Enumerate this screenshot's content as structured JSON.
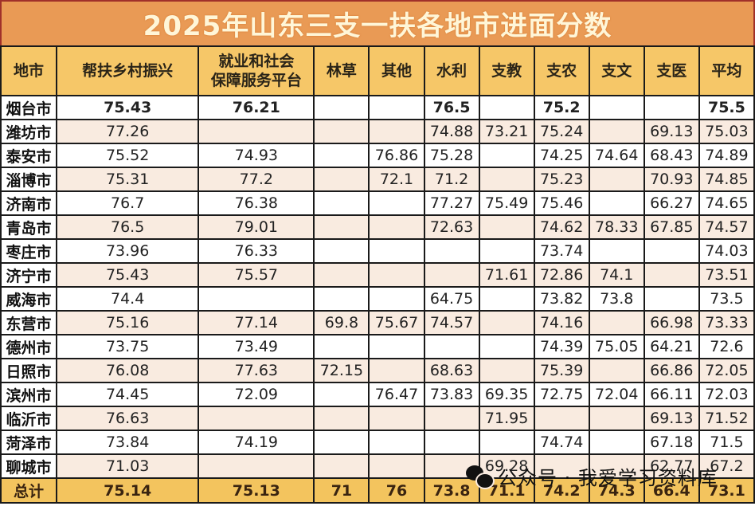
{
  "title": "2025年山东三支一扶各地市进面分数",
  "columns": [
    "地市",
    "帮扶乡村振兴",
    "就业和社会保障服务平台",
    "林草",
    "其他",
    "水利",
    "支教",
    "支农",
    "支文",
    "支医",
    "平均"
  ],
  "column_header_lines": {
    "jiuye_line1": "就业和社会",
    "jiuye_line2": "保障服务平台"
  },
  "rows": [
    {
      "city": "烟台市",
      "values": [
        "75.43",
        "76.21",
        "",
        "",
        "76.5",
        "",
        "75.2",
        "",
        "",
        "75.5"
      ]
    },
    {
      "city": "潍坊市",
      "values": [
        "77.26",
        "",
        "",
        "",
        "74.88",
        "73.21",
        "75.24",
        "",
        "69.13",
        "75.03"
      ]
    },
    {
      "city": "泰安市",
      "values": [
        "75.52",
        "74.93",
        "",
        "76.86",
        "75.28",
        "",
        "74.25",
        "74.64",
        "68.43",
        "74.89"
      ]
    },
    {
      "city": "淄博市",
      "values": [
        "75.31",
        "77.2",
        "",
        "72.1",
        "71.2",
        "",
        "75.23",
        "",
        "70.93",
        "74.85"
      ]
    },
    {
      "city": "济南市",
      "values": [
        "76.7",
        "76.38",
        "",
        "",
        "77.27",
        "75.49",
        "75.46",
        "",
        "66.27",
        "74.65"
      ]
    },
    {
      "city": "青岛市",
      "values": [
        "76.5",
        "79.01",
        "",
        "",
        "72.63",
        "",
        "74.62",
        "78.33",
        "67.85",
        "74.57"
      ]
    },
    {
      "city": "枣庄市",
      "values": [
        "73.96",
        "76.33",
        "",
        "",
        "",
        "",
        "73.74",
        "",
        "",
        "74.03"
      ]
    },
    {
      "city": "济宁市",
      "values": [
        "75.43",
        "75.57",
        "",
        "",
        "",
        "71.61",
        "72.86",
        "74.1",
        "",
        "73.51"
      ]
    },
    {
      "city": "威海市",
      "values": [
        "74.4",
        "",
        "",
        "",
        "64.75",
        "",
        "73.82",
        "73.8",
        "",
        "73.5"
      ]
    },
    {
      "city": "东营市",
      "values": [
        "75.16",
        "77.14",
        "69.8",
        "75.67",
        "74.57",
        "",
        "74.16",
        "",
        "66.98",
        "73.33"
      ]
    },
    {
      "city": "德州市",
      "values": [
        "73.75",
        "73.49",
        "",
        "",
        "",
        "",
        "74.39",
        "75.05",
        "64.21",
        "72.6"
      ]
    },
    {
      "city": "日照市",
      "values": [
        "76.08",
        "77.63",
        "72.15",
        "",
        "68.63",
        "",
        "75.39",
        "",
        "66.86",
        "72.05"
      ]
    },
    {
      "city": "滨州市",
      "values": [
        "74.45",
        "72.09",
        "",
        "76.47",
        "73.83",
        "69.35",
        "72.75",
        "72.04",
        "66.11",
        "72.03"
      ]
    },
    {
      "city": "临沂市",
      "values": [
        "76.63",
        "",
        "",
        "",
        "",
        "71.95",
        "",
        "",
        "69.13",
        "71.52"
      ]
    },
    {
      "city": "菏泽市",
      "values": [
        "73.84",
        "74.19",
        "",
        "",
        "",
        "",
        "74.74",
        "",
        "67.18",
        "71.5"
      ]
    },
    {
      "city": "聊城市",
      "values": [
        "71.03",
        "",
        "",
        "",
        "",
        "69.28",
        "",
        "",
        "62.77",
        "67.2"
      ]
    }
  ],
  "total": {
    "label": "总计",
    "values": [
      "75.14",
      "75.13",
      "71",
      "76",
      "73.8",
      "71.1",
      "74.2",
      "74.3",
      "66.4",
      "73.1"
    ]
  },
  "watermark": {
    "icon": "wechat-icon",
    "text": "公众号 · 我爱学习资料库"
  },
  "colors": {
    "title_bg": "#e99a55",
    "title_text": "#fff6d8",
    "header_bg": "#f6c768",
    "stripe": "#f9ebe0",
    "total_bg": "#f3c45e",
    "border": "#1a1a1a"
  }
}
